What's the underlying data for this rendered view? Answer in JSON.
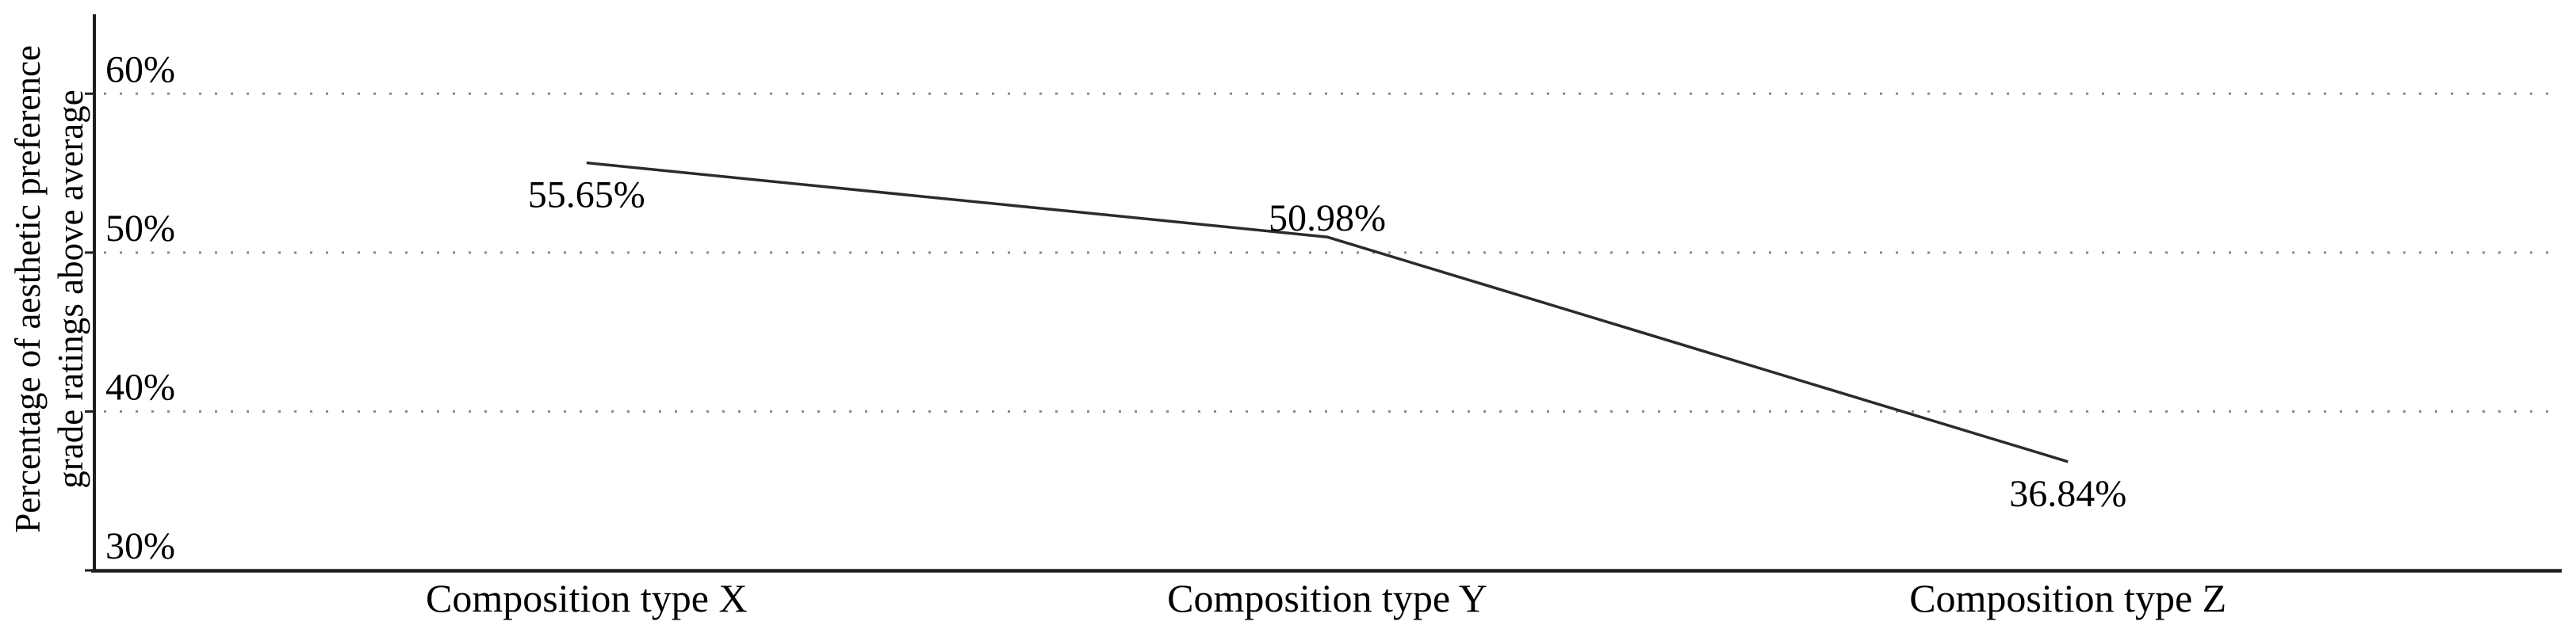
{
  "page": {
    "background": "#ffffff"
  },
  "chart_data": {
    "type": "line",
    "title": "",
    "xlabel": "",
    "ylabel": "Percentage of aesthetic preference grade ratings above average",
    "ylabel_lines": [
      "Percentage of aesthetic preference",
      "grade ratings above average"
    ],
    "categories": [
      "Composition type X",
      "Composition type Y",
      "Composition type Z"
    ],
    "values": [
      55.65,
      50.98,
      36.84
    ],
    "point_labels": [
      "55.65%",
      "50.98%",
      "36.84%"
    ],
    "point_label_placement": [
      "below",
      "above",
      "below"
    ],
    "ylim": [
      30,
      65
    ],
    "yticks": [
      {
        "value": 30,
        "label": "30%",
        "gridline": false
      },
      {
        "value": 40,
        "label": "40%",
        "gridline": true
      },
      {
        "value": 50,
        "label": "50%",
        "gridline": true
      },
      {
        "value": 60,
        "label": "60%",
        "gridline": true
      }
    ],
    "grid": {
      "axis": "y",
      "style": "dotted",
      "tick_label_position": "above-gridline-inside-plot"
    },
    "legend": {
      "visible": false
    },
    "colors": {
      "line": "#2b2b2b",
      "axis": "#1f1f1f",
      "grid_dots": "#8a8a8a",
      "text": "#000000"
    }
  }
}
